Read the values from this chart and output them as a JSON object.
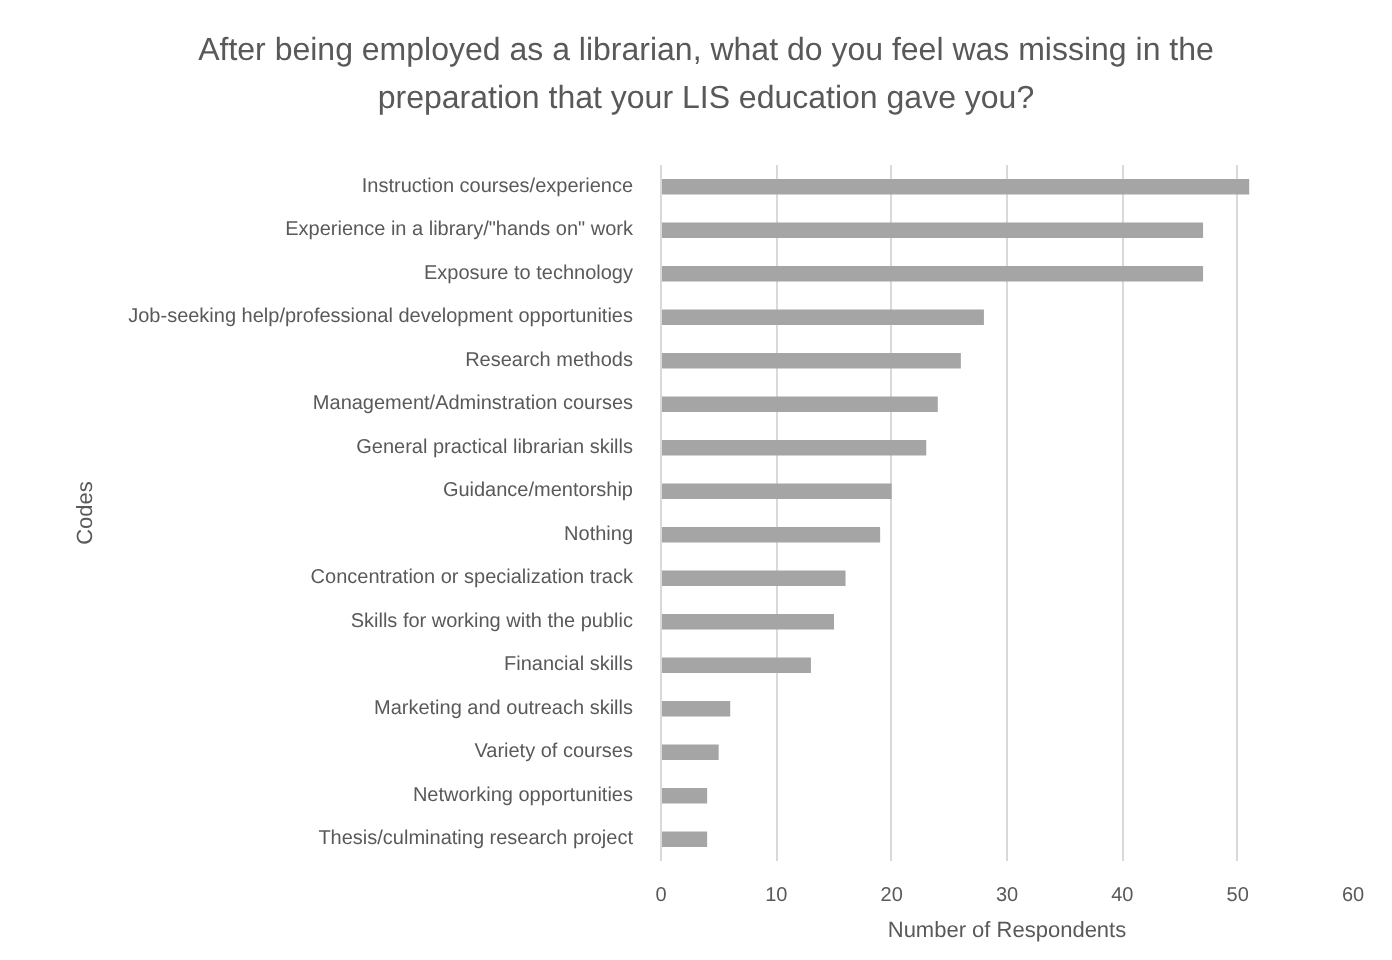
{
  "chart_data": {
    "type": "bar",
    "orientation": "horizontal",
    "title": "After being employed as a librarian, what do you feel was missing in the preparation that your LIS education gave you?",
    "xlabel": "Number of Respondents",
    "ylabel": "Codes",
    "categories": [
      "Instruction courses/experience",
      "Experience in a library/\"hands on\" work",
      "Exposure to technology",
      "Job-seeking help/professional development opportunities",
      "Research methods",
      "Management/Adminstration courses",
      "General practical librarian skills",
      "Guidance/mentorship",
      "Nothing",
      "Concentration or specialization track",
      "Skills for working with the public",
      "Financial skills",
      "Marketing and outreach skills",
      "Variety of courses",
      "Networking opportunities",
      "Thesis/culminating research project"
    ],
    "values": [
      51,
      47,
      47,
      28,
      26,
      24,
      23,
      20,
      19,
      16,
      15,
      13,
      6,
      5,
      4,
      4
    ],
    "color": "#a5a5a5",
    "xlim": [
      0,
      60
    ],
    "xticks": [
      0,
      10,
      20,
      30,
      40,
      50,
      60
    ],
    "grid": "x"
  }
}
